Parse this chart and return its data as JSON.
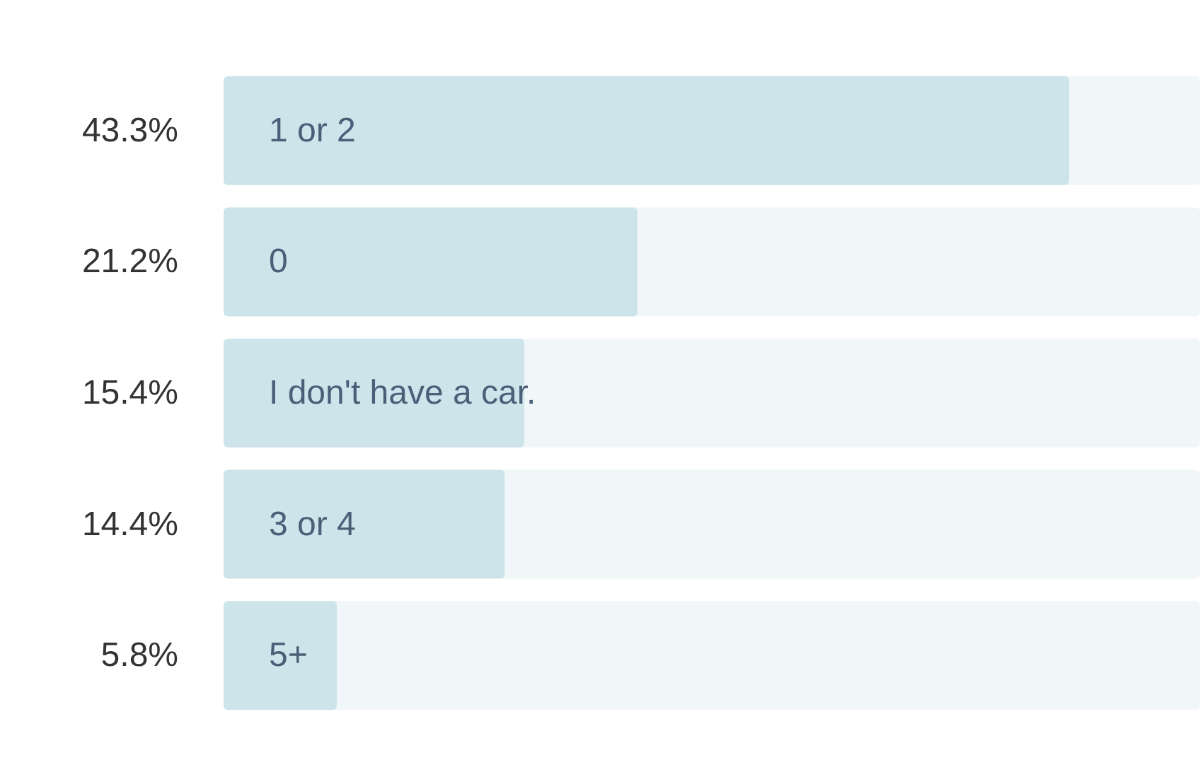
{
  "chart_data": {
    "type": "bar",
    "orientation": "horizontal",
    "categories": [
      "1 or 2",
      "0",
      "I don't have a car.",
      "3 or 4",
      "5+"
    ],
    "values": [
      43.3,
      21.2,
      15.4,
      14.4,
      5.8
    ],
    "value_labels": [
      "43.3%",
      "21.2%",
      "15.4%",
      "14.4%",
      "5.8%"
    ],
    "color": "#cde5ea"
  }
}
